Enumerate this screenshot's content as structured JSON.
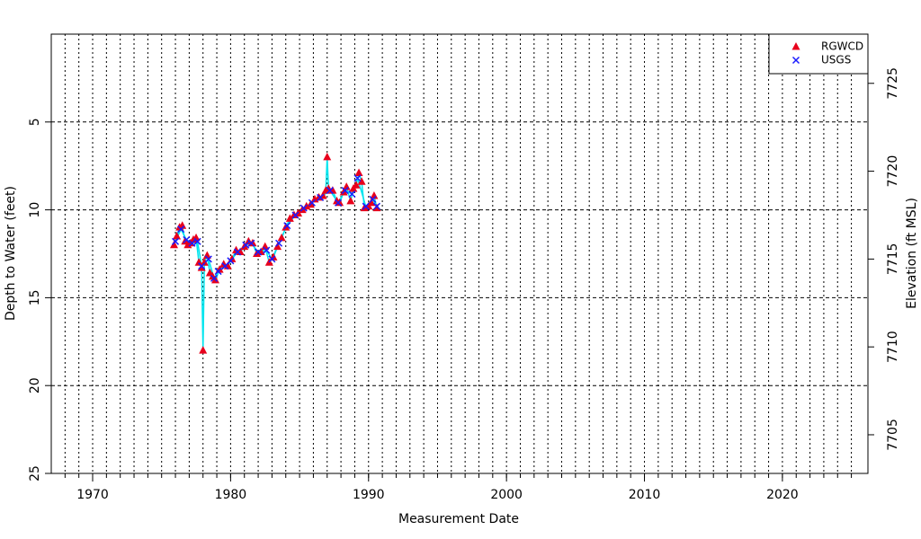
{
  "chart_data": {
    "type": "scatter",
    "x_label": "Measurement Date",
    "y_label": "Depth to Water (feet)",
    "y2_label": "Elevation (ft MSL)",
    "xlim": [
      1967,
      2026.2
    ],
    "xticks": [
      1970,
      1980,
      1990,
      2000,
      2010,
      2020
    ],
    "xminorticks": [
      1968,
      1969,
      1970,
      1971,
      1972,
      1973,
      1974,
      1975,
      1976,
      1977,
      1978,
      1979,
      1980,
      1981,
      1982,
      1983,
      1984,
      1985,
      1986,
      1987,
      1988,
      1989,
      1990,
      1991,
      1992,
      1993,
      1994,
      1995,
      1996,
      1997,
      1998,
      1999,
      2000,
      2001,
      2002,
      2003,
      2004,
      2005,
      2006,
      2007,
      2008,
      2009,
      2010,
      2011,
      2012,
      2013,
      2014,
      2015,
      2016,
      2017,
      2018,
      2019,
      2020,
      2021,
      2022,
      2023,
      2024,
      2025
    ],
    "ylim": [
      25,
      0
    ],
    "yticks": [
      5,
      10,
      15,
      20,
      25
    ],
    "y2lim": [
      7702.8,
      7727.8
    ],
    "y2ticks": [
      7705,
      7710,
      7715,
      7720,
      7725
    ],
    "grid": true,
    "legend": "upper right",
    "line_color": "#00e5ee",
    "series": [
      {
        "name": "RGWCD",
        "color": "#e8001c",
        "marker": "triangle",
        "x": [
          1975.9,
          1976.1,
          1976.3,
          1976.5,
          1976.7,
          1976.9,
          1977.1,
          1977.3,
          1977.5,
          1977.7,
          1977.9,
          1978.0,
          1978.1,
          1978.3,
          1978.5,
          1978.7,
          1978.9,
          1979.2,
          1979.5,
          1979.8,
          1980.1,
          1980.4,
          1980.7,
          1981.0,
          1981.3,
          1981.6,
          1981.9,
          1982.2,
          1982.5,
          1982.8,
          1983.1,
          1983.4,
          1983.7,
          1984.0,
          1984.3,
          1984.6,
          1984.9,
          1985.2,
          1985.5,
          1985.8,
          1986.1,
          1986.4,
          1986.7,
          1986.9,
          1987.0,
          1987.1,
          1987.4,
          1987.7,
          1987.9,
          1988.2,
          1988.4,
          1988.7,
          1988.9,
          1989.1,
          1989.3,
          1989.5,
          1989.7,
          1990.0,
          1990.2,
          1990.4,
          1990.6
        ],
        "values": [
          12.0,
          11.5,
          11.0,
          10.9,
          11.8,
          12.0,
          11.9,
          11.7,
          11.6,
          13.0,
          13.3,
          18.0,
          13.0,
          12.6,
          13.6,
          13.8,
          14.0,
          13.4,
          13.1,
          13.2,
          12.8,
          12.3,
          12.4,
          12.1,
          11.8,
          11.9,
          12.5,
          12.4,
          12.1,
          13.0,
          12.7,
          12.1,
          11.6,
          11.0,
          10.5,
          10.3,
          10.2,
          10.0,
          9.8,
          9.7,
          9.4,
          9.3,
          9.2,
          8.9,
          7.0,
          8.8,
          8.9,
          9.5,
          9.6,
          9.0,
          8.7,
          9.5,
          8.8,
          8.6,
          7.9,
          8.4,
          9.9,
          9.8,
          9.6,
          9.2,
          9.9
        ]
      },
      {
        "name": "USGS",
        "color": "#1a1aff",
        "marker": "x",
        "x": [
          1976.0,
          1976.4,
          1976.8,
          1977.2,
          1977.6,
          1977.9,
          1978.4,
          1978.8,
          1979.1,
          1979.6,
          1980.0,
          1980.5,
          1981.1,
          1981.5,
          1982.0,
          1982.6,
          1983.0,
          1983.5,
          1984.1,
          1984.7,
          1985.3,
          1985.9,
          1986.5,
          1987.2,
          1987.8,
          1988.3,
          1988.8,
          1989.2,
          1989.8,
          1990.3,
          1990.6
        ],
        "values": [
          11.8,
          11.1,
          11.7,
          11.9,
          11.8,
          13.2,
          12.8,
          13.9,
          13.5,
          13.2,
          12.9,
          12.4,
          12.0,
          11.9,
          12.4,
          12.3,
          12.8,
          11.9,
          10.9,
          10.3,
          9.9,
          9.6,
          9.3,
          8.9,
          9.6,
          8.9,
          9.1,
          8.2,
          9.8,
          9.4,
          9.8
        ]
      }
    ]
  }
}
